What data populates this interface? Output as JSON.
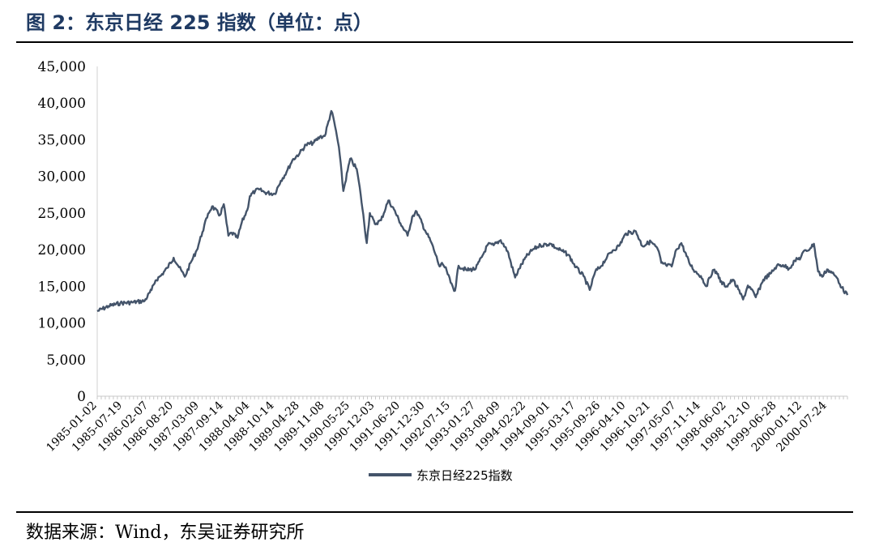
{
  "header": {
    "title": "图 2：东京日经 225 指数（单位：点）"
  },
  "footer": {
    "source": "数据来源：Wind，东吴证券研究所"
  },
  "colors": {
    "title": "#1f3a63",
    "series": "#44546a"
  },
  "chart_data": {
    "type": "line",
    "title": "图 2：东京日经 225 指数（单位：点）",
    "xlabel": "",
    "ylabel": "",
    "ylim": [
      0,
      45000
    ],
    "yticks": [
      0,
      5000,
      10000,
      15000,
      20000,
      25000,
      30000,
      35000,
      40000,
      45000
    ],
    "ytick_labels": [
      "0",
      "5,000",
      "10,000",
      "15,000",
      "20,000",
      "25,000",
      "30,000",
      "35,000",
      "40,000",
      "45,000"
    ],
    "xlim": [
      "1985-01-02",
      "2000-12-29"
    ],
    "xtick_labels": [
      "1985-01-02",
      "1985-07-19",
      "1986-02-07",
      "1986-08-20",
      "1987-03-09",
      "1987-09-14",
      "1988-04-04",
      "1988-10-14",
      "1989-04-28",
      "1989-11-08",
      "1990-05-25",
      "1990-12-03",
      "1991-06-20",
      "1991-12-30",
      "1992-07-15",
      "1993-01-27",
      "1993-08-09",
      "1994-02-22",
      "1994-09-01",
      "1995-03-17",
      "1995-09-26",
      "1996-04-10",
      "1996-10-21",
      "1997-05-07",
      "1997-11-14",
      "1998-06-02",
      "1998-12-10",
      "1999-06-28",
      "2000-01-12",
      "2000-07-24"
    ],
    "grid": false,
    "legend_position": "bottom",
    "series": [
      {
        "name": "东京日经225指数",
        "color": "#44546a",
        "x": [
          "1985-01-02",
          "1985-04-01",
          "1985-07-01",
          "1985-10-01",
          "1986-01-06",
          "1986-03-01",
          "1986-04-01",
          "1986-05-15",
          "1986-07-01",
          "1986-08-20",
          "1986-10-01",
          "1986-11-15",
          "1987-01-05",
          "1987-02-15",
          "1987-04-01",
          "1987-05-15",
          "1987-06-15",
          "1987-08-15",
          "1987-09-14",
          "1987-10-20",
          "1987-11-15",
          "1987-12-31",
          "1988-02-01",
          "1988-03-15",
          "1988-04-04",
          "1988-05-15",
          "1988-06-15",
          "1988-08-01",
          "1988-10-14",
          "1988-12-01",
          "1989-01-15",
          "1989-03-01",
          "1989-04-28",
          "1989-06-15",
          "1989-08-15",
          "1989-10-01",
          "1989-11-08",
          "1989-12-29",
          "1990-01-20",
          "1990-02-26",
          "1990-04-02",
          "1990-05-25",
          "1990-07-15",
          "1990-08-15",
          "1990-10-01",
          "1990-10-25",
          "1990-12-03",
          "1991-01-20",
          "1991-03-18",
          "1991-05-01",
          "1991-06-20",
          "1991-08-15",
          "1991-09-20",
          "1991-10-25",
          "1991-12-30",
          "1992-02-15",
          "1992-03-20",
          "1992-04-20",
          "1992-05-15",
          "1992-06-15",
          "1992-07-15",
          "1992-08-18",
          "1992-09-15",
          "1992-11-15",
          "1993-01-27",
          "1993-03-15",
          "1993-05-01",
          "1993-06-15",
          "1993-08-09",
          "1993-10-01",
          "1993-11-29",
          "1993-12-31",
          "1994-02-22",
          "1994-04-15",
          "1994-06-15",
          "1994-09-01",
          "1994-10-15",
          "1994-12-01",
          "1995-01-17",
          "1995-03-17",
          "1995-05-15",
          "1995-07-03",
          "1995-08-15",
          "1995-09-26",
          "1995-11-15",
          "1995-12-29",
          "1996-02-15",
          "1996-04-10",
          "1996-06-26",
          "1996-08-15",
          "1996-10-21",
          "1996-12-15",
          "1997-01-10",
          "1997-02-15",
          "1997-04-01",
          "1997-05-07",
          "1997-06-15",
          "1997-08-15",
          "1997-10-01",
          "1997-11-14",
          "1997-12-26",
          "1998-02-15",
          "1998-03-27",
          "1998-04-15",
          "1998-06-02",
          "1998-07-20",
          "1998-09-01",
          "1998-10-09",
          "1998-11-15",
          "1998-12-10",
          "1999-01-15",
          "1999-03-15",
          "1999-05-15",
          "1999-06-28",
          "1999-08-15",
          "1999-10-01",
          "1999-11-15",
          "1999-12-31",
          "2000-01-12",
          "2000-03-15",
          "2000-04-12",
          "2000-05-15",
          "2000-06-15",
          "2000-07-24",
          "2000-09-15",
          "2000-10-15",
          "2000-11-15",
          "2000-12-29"
        ],
        "values": [
          11600,
          12300,
          12700,
          12800,
          13000,
          14500,
          15800,
          16500,
          17500,
          18900,
          17600,
          16300,
          18400,
          19900,
          22400,
          24900,
          25900,
          24700,
          26200,
          21900,
          22300,
          21600,
          23700,
          25400,
          27300,
          28000,
          28200,
          27800,
          27600,
          29400,
          30600,
          32200,
          33200,
          34300,
          34600,
          35400,
          35500,
          38915,
          37500,
          34000,
          28000,
          32400,
          31000,
          27500,
          20900,
          25000,
          23500,
          24000,
          26700,
          25500,
          23600,
          21900,
          24500,
          25200,
          22600,
          21000,
          19300,
          17700,
          18000,
          17100,
          15500,
          14400,
          17800,
          17200,
          17400,
          19000,
          20700,
          20600,
          21300,
          19800,
          16200,
          17400,
          19000,
          20000,
          20600,
          20800,
          20200,
          19800,
          19300,
          17600,
          16400,
          14500,
          17000,
          17700,
          19000,
          19900,
          20500,
          22200,
          22500,
          20500,
          21100,
          20000,
          18200,
          17900,
          17700,
          20000,
          20900,
          18200,
          17000,
          16400,
          15000,
          17200,
          16700,
          15600,
          15000,
          15900,
          14600,
          13200,
          15100,
          14600,
          13500,
          15900,
          16800,
          17800,
          17900,
          17400,
          18500,
          18900,
          19500,
          20200,
          20800,
          17000,
          16300,
          17300,
          16600,
          16000,
          14800,
          13800
        ]
      }
    ]
  }
}
